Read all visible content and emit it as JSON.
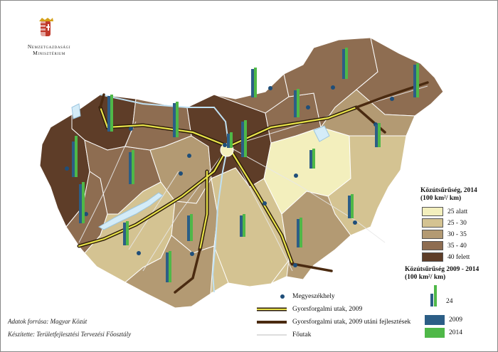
{
  "ministry": {
    "line1": "Nemzetgazdasági",
    "line2": "Minisztérium"
  },
  "legend_density": {
    "title_line1": "Közútsűrűség, 2014",
    "title_line2": "(100 km²/ km)",
    "classes": [
      {
        "label": "25 alatt",
        "color": "#f3efbd"
      },
      {
        "label": "25 - 30",
        "color": "#d4c392"
      },
      {
        "label": "30 - 35",
        "color": "#b39a73"
      },
      {
        "label": "35 - 40",
        "color": "#8e6d51"
      },
      {
        "label": "40 felett",
        "color": "#5e3d28"
      }
    ]
  },
  "legend_change": {
    "title_line1": "Közútsűrűség 2009 - 2014",
    "title_line2": "(100 km²/ km)",
    "scale_value": "24",
    "series": [
      {
        "label": "2009",
        "color": "#2c5e86"
      },
      {
        "label": "2014",
        "color": "#4fb848"
      }
    ]
  },
  "legend_roads": [
    {
      "label": "Megyeszékhely",
      "symbol": "dot"
    },
    {
      "label": "Gyorsforgalmi utak, 2009",
      "symbol": "motorway-2009"
    },
    {
      "label": "Gyorsforgalmi utak, 2009 utáni fejlesztések",
      "symbol": "motorway-new"
    },
    {
      "label": "Főutak",
      "symbol": "main-road"
    }
  ],
  "credits": {
    "source": "Adatok forrása: Magyar Közút",
    "author": "Készítette: Területfejlesztési Tervezési Főosztály"
  },
  "colors": {
    "dot": "#1f4e79",
    "motorway_2009": "#e8e34a",
    "motorway_new": "#4a2a10",
    "water": "#d4ecf8",
    "main_road": "#e6e6e6"
  }
}
